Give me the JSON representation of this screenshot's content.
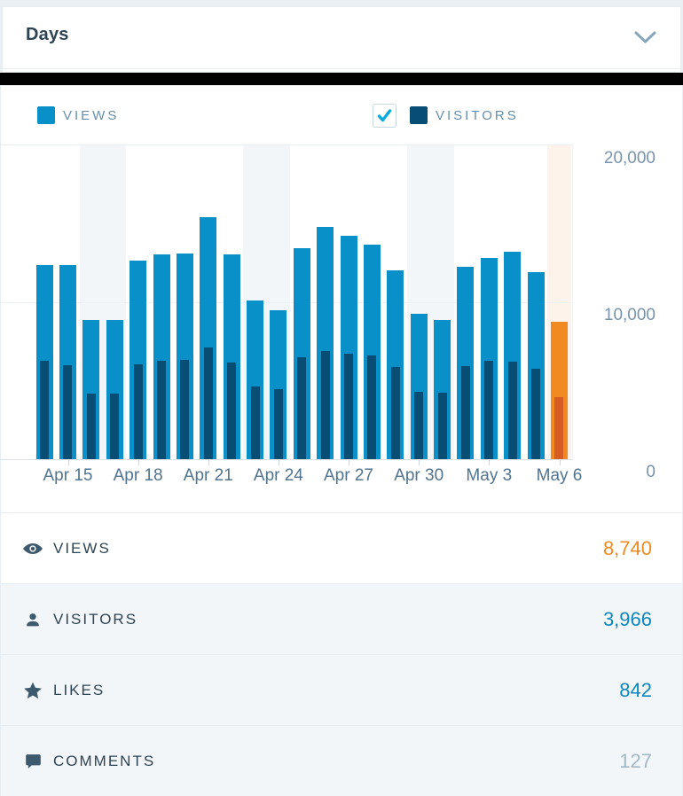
{
  "header": {
    "title": "Days",
    "chevron_icon": "chevron-down-icon"
  },
  "legend": {
    "views": {
      "label": "VIEWS",
      "swatch_color": "#0a90c8"
    },
    "visitors": {
      "label": "VISITORS",
      "swatch_color": "#084e74",
      "checkbox_checked": true,
      "check_color": "#0ba9dc"
    }
  },
  "chart_data": {
    "type": "bar",
    "title": "Views and Visitors by day",
    "x": [
      "Apr 14",
      "Apr 15",
      "Apr 16",
      "Apr 17",
      "Apr 18",
      "Apr 19",
      "Apr 20",
      "Apr 21",
      "Apr 22",
      "Apr 23",
      "Apr 24",
      "Apr 25",
      "Apr 26",
      "Apr 27",
      "Apr 28",
      "Apr 29",
      "Apr 30",
      "May 1",
      "May 2",
      "May 3",
      "May 4",
      "May 5",
      "May 6"
    ],
    "series": [
      {
        "name": "Views",
        "color": "#0a90c8",
        "values": [
          12400,
          12400,
          8900,
          8900,
          12650,
          13050,
          13100,
          15400,
          13050,
          10100,
          9500,
          13450,
          14800,
          14250,
          13650,
          12050,
          9250,
          8900,
          12250,
          12850,
          13200,
          11900,
          8740
        ]
      },
      {
        "name": "Visitors",
        "color": "#084e74",
        "values": [
          6250,
          5970,
          4160,
          4160,
          6050,
          6300,
          6350,
          7100,
          6150,
          4650,
          4450,
          6480,
          6900,
          6720,
          6630,
          5860,
          4275,
          4255,
          5950,
          6290,
          6200,
          5760,
          3966
        ]
      }
    ],
    "ylim": [
      0,
      20000
    ],
    "y_ticks": [
      {
        "value": 20000,
        "label": "20,000"
      },
      {
        "value": 10000,
        "label": "10,000"
      },
      {
        "value": 0,
        "label": "0"
      }
    ],
    "x_tick_indices": [
      1,
      4,
      7,
      10,
      13,
      16,
      19,
      22
    ],
    "x_tick_labels": [
      "Apr 15",
      "Apr 18",
      "Apr 21",
      "Apr 24",
      "Apr 27",
      "Apr 30",
      "May 3",
      "May 6"
    ],
    "weekend_bands": [
      [
        2,
        3
      ],
      [
        9,
        10
      ],
      [
        16,
        17
      ]
    ],
    "weekend_band_color": "#f3f6f9",
    "today_index": 22,
    "today_colors": {
      "views": "#f08a21",
      "visitors": "#d65d24",
      "band": "#fdf3ea"
    },
    "grid": "horizontal",
    "legend_position": "top",
    "xlabel": "",
    "ylabel": ""
  },
  "summary": {
    "rows": [
      {
        "id": "views",
        "icon": "eye-icon",
        "label": "VIEWS",
        "value": "8,740",
        "value_color": "#ef8a21",
        "active": true
      },
      {
        "id": "visitors",
        "icon": "user-icon",
        "label": "VISITORS",
        "value": "3,966",
        "value_color": "#0a87be",
        "active": false
      },
      {
        "id": "likes",
        "icon": "star-icon",
        "label": "LIKES",
        "value": "842",
        "value_color": "#0a87be",
        "active": false
      },
      {
        "id": "comments",
        "icon": "comment-icon",
        "label": "COMMENTS",
        "value": "127",
        "value_color": "#a1b8c6",
        "active": false
      }
    ]
  },
  "colors": {
    "page_background": "#e9eff3",
    "card_background": "#ffffff",
    "divider_bar": "#020202",
    "row_background": "#f3f6f8",
    "title_text": "#2e4453",
    "legend_text": "#668eaa",
    "axis_text_y": "#7893ab",
    "axis_text_x": "#50748f"
  }
}
